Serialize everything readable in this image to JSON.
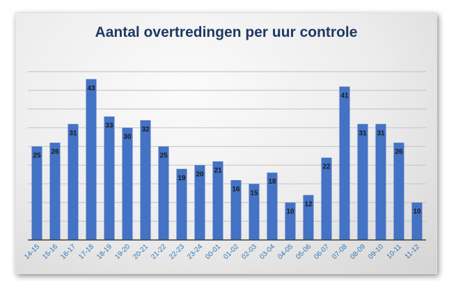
{
  "chart_data": {
    "type": "bar",
    "title": "Aantal overtredingen per uur controle",
    "xlabel": "",
    "ylabel": "",
    "categories": [
      "14-15",
      "15-16",
      "16-17",
      "17-18",
      "18-19",
      "19-20",
      "20-21",
      "21-22",
      "22-23",
      "23-24",
      "00-01",
      "01-02",
      "02-03",
      "03-04",
      "04-05",
      "05-06",
      "06-07",
      "07-08",
      "08-09",
      "09-10",
      "10-11",
      "11-12"
    ],
    "values": [
      25,
      26,
      31,
      43,
      33,
      30,
      32,
      25,
      19,
      20,
      21,
      16,
      15,
      18,
      10,
      12,
      22,
      41,
      31,
      31,
      26,
      10
    ],
    "ylim": [
      0,
      45
    ],
    "grid_step": 5,
    "grid": true,
    "legend": "none",
    "colors": {
      "bar": "#4472c4",
      "label": "#1a1a1a",
      "tick": "#2e75b6",
      "title": "#1f3864",
      "grid": "#c8c8c8"
    }
  }
}
